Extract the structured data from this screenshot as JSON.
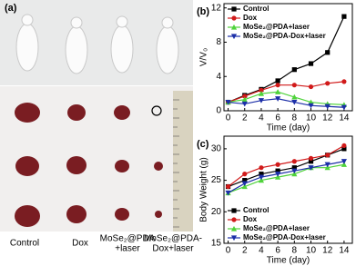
{
  "photo_panel": {
    "label": "(a)",
    "groups": [
      [
        "Control"
      ],
      [
        "Dox"
      ],
      [
        "MoSe₂@PDA",
        "+laser"
      ],
      [
        "MoSe₂@PDA-",
        "Dox+laser"
      ]
    ]
  },
  "chart_data": [
    {
      "type": "line",
      "panel_label": "(b)",
      "x_label": "Time (day)",
      "y_label": "V/V₀",
      "x": [
        0,
        2,
        4,
        6,
        8,
        10,
        12,
        14
      ],
      "xlim": [
        -0.5,
        15
      ],
      "xticks": [
        0,
        2,
        4,
        6,
        8,
        10,
        12,
        14
      ],
      "ylim": [
        0,
        12.5
      ],
      "yticks": [
        0,
        4,
        8,
        12
      ],
      "legend": "upper left",
      "series": [
        {
          "name": "Control",
          "color": "#000000",
          "marker": "square",
          "values": [
            1,
            1.8,
            2.5,
            3.5,
            4.8,
            5.5,
            6.8,
            11
          ]
        },
        {
          "name": "Dox",
          "color": "#d11a1a",
          "marker": "circle",
          "values": [
            1,
            1.7,
            2.4,
            3.0,
            3.0,
            2.8,
            3.2,
            3.4
          ]
        },
        {
          "name": "MoSe₂@PDA+laser",
          "color": "#4fd33a",
          "marker": "triangle-up",
          "values": [
            1,
            1.3,
            2.0,
            2.2,
            1.6,
            1.0,
            0.8,
            0.7
          ]
        },
        {
          "name": "MoSe₂@PDA-Dox+laser",
          "color": "#1c2fa8",
          "marker": "triangle-down",
          "values": [
            1,
            0.8,
            1.2,
            1.4,
            1.0,
            0.6,
            0.5,
            0.4
          ]
        }
      ]
    },
    {
      "type": "line",
      "panel_label": "(c)",
      "x_label": "Time (day)",
      "y_label": "Body Weight (g)",
      "x": [
        0,
        2,
        4,
        6,
        8,
        10,
        12,
        14
      ],
      "xlim": [
        -0.5,
        15
      ],
      "xticks": [
        0,
        2,
        4,
        6,
        8,
        10,
        12,
        14
      ],
      "ylim": [
        15,
        32
      ],
      "yticks": [
        15,
        20,
        25,
        30
      ],
      "legend": "lower left",
      "series": [
        {
          "name": "Control",
          "color": "#000000",
          "marker": "square",
          "values": [
            24,
            25,
            26,
            26.5,
            27,
            28,
            29,
            30
          ]
        },
        {
          "name": "Dox",
          "color": "#d11a1a",
          "marker": "circle",
          "values": [
            24,
            26,
            27,
            27.5,
            28,
            28.5,
            29,
            30.5
          ]
        },
        {
          "name": "MoSe₂@PDA+laser",
          "color": "#4fd33a",
          "marker": "triangle-up",
          "values": [
            23,
            24,
            25,
            25.5,
            26,
            27,
            27,
            27.5
          ]
        },
        {
          "name": "MoSe₂@PDA-Dox+laser",
          "color": "#1c2fa8",
          "marker": "triangle-down",
          "values": [
            23,
            24.5,
            25.5,
            26,
            26.5,
            27,
            27.5,
            28
          ]
        }
      ]
    }
  ]
}
